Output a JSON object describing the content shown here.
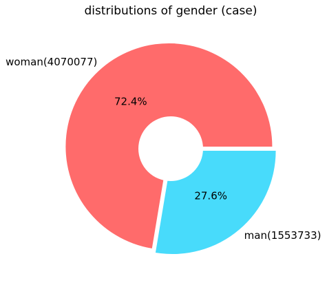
{
  "chart_data": {
    "type": "pie",
    "title": "distributions of gender (case)",
    "slices": [
      {
        "label": "woman(4070077)",
        "value": 4070077,
        "percent_label": "72.4%",
        "color": "#ff6b6b"
      },
      {
        "label": "man(1553733)",
        "value": 1553733,
        "percent_label": "27.6%",
        "color": "#48dbfb"
      }
    ],
    "donut": true,
    "exploded": true,
    "legend": "none"
  }
}
